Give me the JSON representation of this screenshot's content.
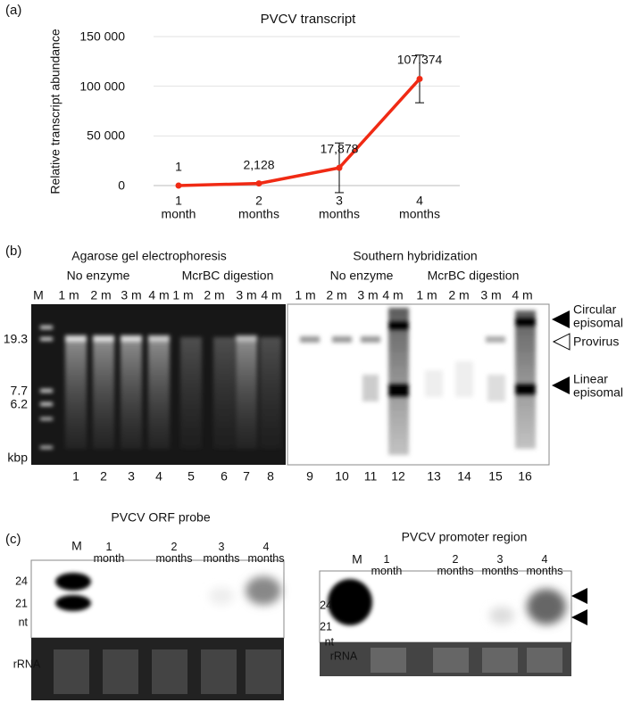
{
  "chart_data": {
    "type": "line",
    "panel": "(a)",
    "title": "PVCV transcript",
    "y_label": "Relative transcript  abundance",
    "categories": [
      "1\nmonth",
      "2\nmonths",
      "3\nmonths",
      "4\nmonths"
    ],
    "values": [
      1,
      2128,
      17878,
      107374
    ],
    "value_labels": [
      "1",
      "2,128",
      "17,878",
      "107,374"
    ],
    "errors": [
      null,
      null,
      25000,
      24000
    ],
    "color": "#f02a14",
    "ylim": [
      0,
      150000
    ],
    "yticks": [
      0,
      {
        "value": 50000,
        "label": "50 000"
      },
      {
        "value": 100000,
        "label": "100 000"
      },
      {
        "value": 150000,
        "label": "150 000"
      }
    ],
    "grid": true
  },
  "panel_b": {
    "label": "(b)",
    "gel_title": "Agarose gel electrophoresis",
    "southern_title": "Southern hybridization",
    "groups": [
      "No enzyme",
      "McrBC digestion",
      "No enzyme",
      "McrBC digestion"
    ],
    "lanes": [
      "M",
      "1 m",
      "2 m",
      "3 m",
      "4 m",
      "1 m",
      "2 m",
      "3 m",
      "4 m",
      "1 m",
      "2 m",
      "3 m",
      "4 m",
      "1 m",
      "2 m",
      "3 m",
      "4 m"
    ],
    "lane_numbers": [
      1,
      2,
      3,
      4,
      5,
      6,
      7,
      8,
      9,
      10,
      11,
      12,
      13,
      14,
      15,
      16
    ],
    "markers": [
      "19.3",
      "7.7",
      "6.2",
      "kbp"
    ],
    "annotations": [
      "Circular\nepisomal",
      "Provirus",
      "Linear\nepisomal"
    ]
  },
  "panel_c": {
    "label": "(c)",
    "blots": [
      {
        "title": "PVCV ORF probe",
        "lanes": [
          "M",
          "1\nmonth",
          "2\nmonths",
          "3\nmonths",
          "4\nmonths"
        ],
        "markers": [
          "24",
          "21",
          "nt"
        ],
        "rrna": "rRNA"
      },
      {
        "title": "PVCV promoter region",
        "lanes": [
          "M",
          "1\nmonth",
          "2\nmonths",
          "3\nmonths",
          "4\nmonths"
        ],
        "markers": [
          "24",
          "21",
          "nt"
        ],
        "rrna": "rRNA"
      }
    ]
  }
}
